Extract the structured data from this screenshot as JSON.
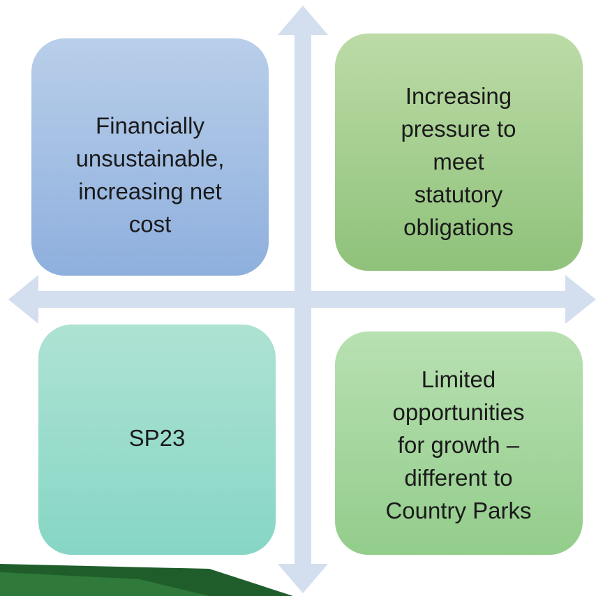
{
  "quadrants": [
    {
      "lines": [
        "Financially",
        "unsustainable,",
        "increasing net",
        "cost"
      ]
    },
    {
      "lines": [
        "Increasing",
        "pressure to",
        "meet",
        "statutory",
        "obligations"
      ]
    },
    {
      "lines": [
        "SP23"
      ]
    },
    {
      "lines": [
        "Limited",
        "opportunities",
        "for growth –",
        "different to",
        "Country Parks"
      ]
    }
  ]
}
